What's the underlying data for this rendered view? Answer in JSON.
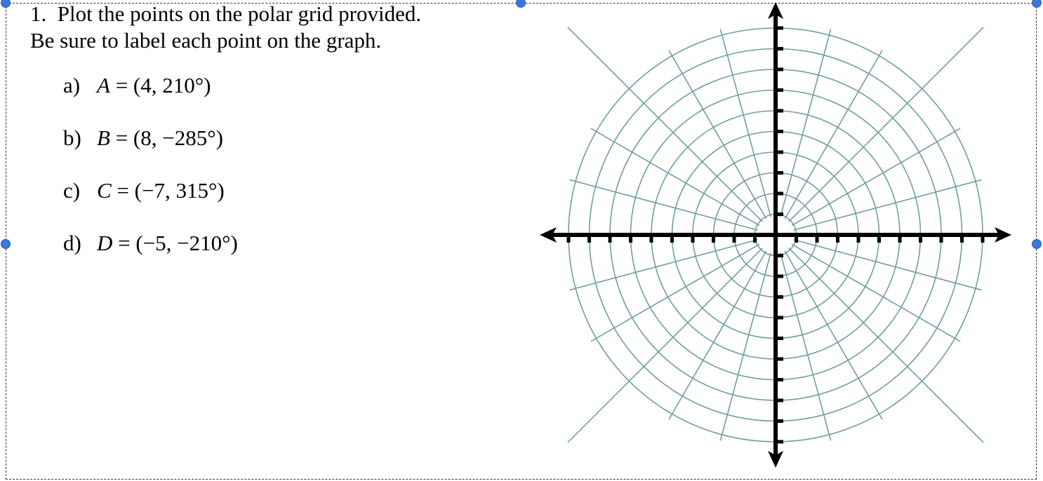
{
  "problem": {
    "number": "1.",
    "line1": "Plot the points on the polar grid provided.",
    "line2": "Be sure to label each point on the graph."
  },
  "items": [
    {
      "label": "a)",
      "var": "A",
      "eq": " = (4, 210°)"
    },
    {
      "label": "b)",
      "var": "B",
      "eq": " = (8, −285°)"
    },
    {
      "label": "c)",
      "var": "C",
      "eq": " = (−7, 315°)"
    },
    {
      "label": "d)",
      "var": "D",
      "eq": " = (−5, −210°)"
    }
  ],
  "polar_grid": {
    "rings": 10,
    "spoke_angle_step_deg": 15,
    "grid_color": "#6f9ea0",
    "axis_color": "#000000"
  },
  "selection_handle_color": "#3a78d8"
}
